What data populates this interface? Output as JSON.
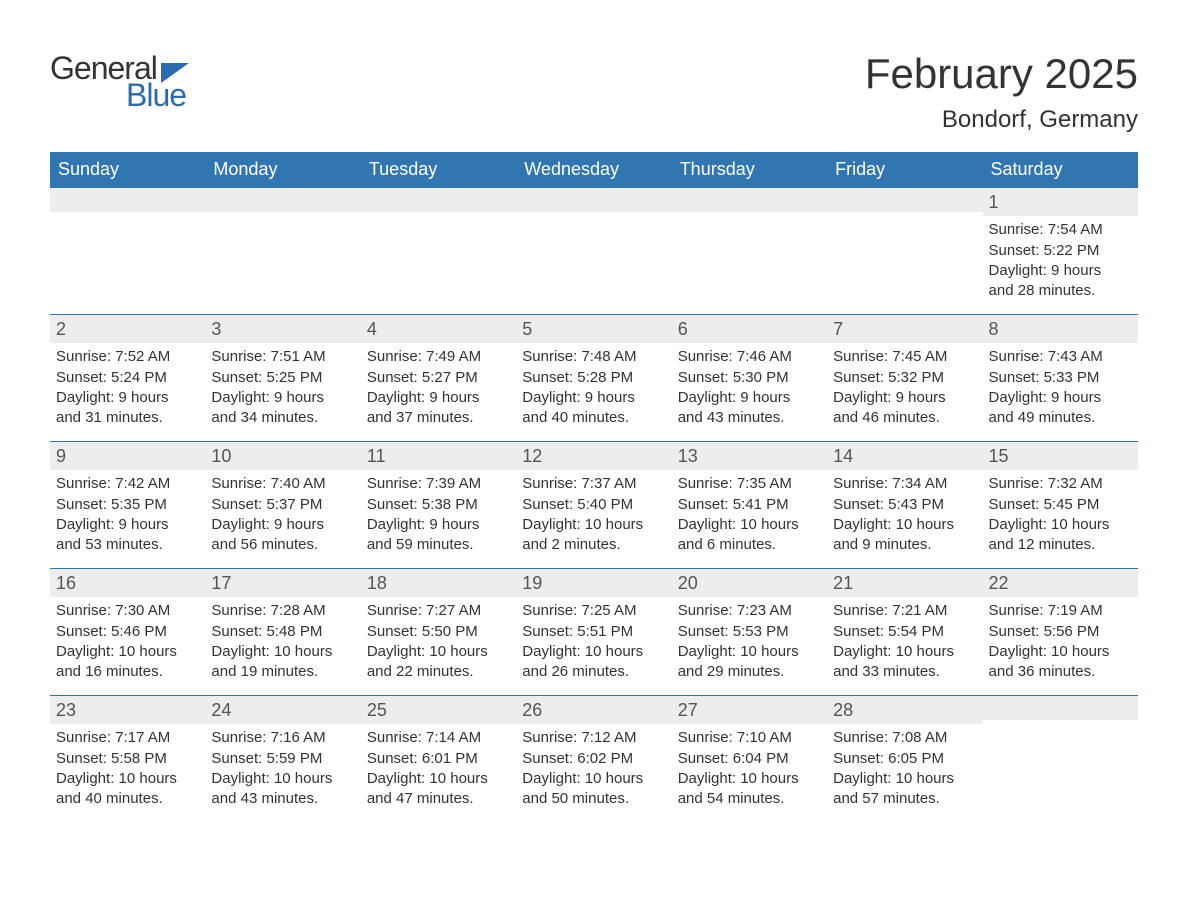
{
  "logo": {
    "text1": "General",
    "text2": "Blue"
  },
  "header": {
    "month": "February 2025",
    "location": "Bondorf, Germany"
  },
  "colors": {
    "header_bg": "#3276b1",
    "header_text": "#ffffff",
    "daynum_bg": "#ededed",
    "border": "#3276b1",
    "logo_blue": "#2b6cb0",
    "text": "#333333",
    "background": "#ffffff"
  },
  "typography": {
    "month_fontsize": 42,
    "location_fontsize": 24,
    "weekday_fontsize": 18,
    "daynum_fontsize": 18,
    "body_fontsize": 15
  },
  "weekdays": [
    "Sunday",
    "Monday",
    "Tuesday",
    "Wednesday",
    "Thursday",
    "Friday",
    "Saturday"
  ],
  "weeks": [
    [
      {
        "day": "",
        "lines": [
          "",
          "",
          "",
          ""
        ]
      },
      {
        "day": "",
        "lines": [
          "",
          "",
          "",
          ""
        ]
      },
      {
        "day": "",
        "lines": [
          "",
          "",
          "",
          ""
        ]
      },
      {
        "day": "",
        "lines": [
          "",
          "",
          "",
          ""
        ]
      },
      {
        "day": "",
        "lines": [
          "",
          "",
          "",
          ""
        ]
      },
      {
        "day": "",
        "lines": [
          "",
          "",
          "",
          ""
        ]
      },
      {
        "day": "1",
        "lines": [
          "Sunrise: 7:54 AM",
          "Sunset: 5:22 PM",
          "Daylight: 9 hours",
          "and 28 minutes."
        ]
      }
    ],
    [
      {
        "day": "2",
        "lines": [
          "Sunrise: 7:52 AM",
          "Sunset: 5:24 PM",
          "Daylight: 9 hours",
          "and 31 minutes."
        ]
      },
      {
        "day": "3",
        "lines": [
          "Sunrise: 7:51 AM",
          "Sunset: 5:25 PM",
          "Daylight: 9 hours",
          "and 34 minutes."
        ]
      },
      {
        "day": "4",
        "lines": [
          "Sunrise: 7:49 AM",
          "Sunset: 5:27 PM",
          "Daylight: 9 hours",
          "and 37 minutes."
        ]
      },
      {
        "day": "5",
        "lines": [
          "Sunrise: 7:48 AM",
          "Sunset: 5:28 PM",
          "Daylight: 9 hours",
          "and 40 minutes."
        ]
      },
      {
        "day": "6",
        "lines": [
          "Sunrise: 7:46 AM",
          "Sunset: 5:30 PM",
          "Daylight: 9 hours",
          "and 43 minutes."
        ]
      },
      {
        "day": "7",
        "lines": [
          "Sunrise: 7:45 AM",
          "Sunset: 5:32 PM",
          "Daylight: 9 hours",
          "and 46 minutes."
        ]
      },
      {
        "day": "8",
        "lines": [
          "Sunrise: 7:43 AM",
          "Sunset: 5:33 PM",
          "Daylight: 9 hours",
          "and 49 minutes."
        ]
      }
    ],
    [
      {
        "day": "9",
        "lines": [
          "Sunrise: 7:42 AM",
          "Sunset: 5:35 PM",
          "Daylight: 9 hours",
          "and 53 minutes."
        ]
      },
      {
        "day": "10",
        "lines": [
          "Sunrise: 7:40 AM",
          "Sunset: 5:37 PM",
          "Daylight: 9 hours",
          "and 56 minutes."
        ]
      },
      {
        "day": "11",
        "lines": [
          "Sunrise: 7:39 AM",
          "Sunset: 5:38 PM",
          "Daylight: 9 hours",
          "and 59 minutes."
        ]
      },
      {
        "day": "12",
        "lines": [
          "Sunrise: 7:37 AM",
          "Sunset: 5:40 PM",
          "Daylight: 10 hours",
          "and 2 minutes."
        ]
      },
      {
        "day": "13",
        "lines": [
          "Sunrise: 7:35 AM",
          "Sunset: 5:41 PM",
          "Daylight: 10 hours",
          "and 6 minutes."
        ]
      },
      {
        "day": "14",
        "lines": [
          "Sunrise: 7:34 AM",
          "Sunset: 5:43 PM",
          "Daylight: 10 hours",
          "and 9 minutes."
        ]
      },
      {
        "day": "15",
        "lines": [
          "Sunrise: 7:32 AM",
          "Sunset: 5:45 PM",
          "Daylight: 10 hours",
          "and 12 minutes."
        ]
      }
    ],
    [
      {
        "day": "16",
        "lines": [
          "Sunrise: 7:30 AM",
          "Sunset: 5:46 PM",
          "Daylight: 10 hours",
          "and 16 minutes."
        ]
      },
      {
        "day": "17",
        "lines": [
          "Sunrise: 7:28 AM",
          "Sunset: 5:48 PM",
          "Daylight: 10 hours",
          "and 19 minutes."
        ]
      },
      {
        "day": "18",
        "lines": [
          "Sunrise: 7:27 AM",
          "Sunset: 5:50 PM",
          "Daylight: 10 hours",
          "and 22 minutes."
        ]
      },
      {
        "day": "19",
        "lines": [
          "Sunrise: 7:25 AM",
          "Sunset: 5:51 PM",
          "Daylight: 10 hours",
          "and 26 minutes."
        ]
      },
      {
        "day": "20",
        "lines": [
          "Sunrise: 7:23 AM",
          "Sunset: 5:53 PM",
          "Daylight: 10 hours",
          "and 29 minutes."
        ]
      },
      {
        "day": "21",
        "lines": [
          "Sunrise: 7:21 AM",
          "Sunset: 5:54 PM",
          "Daylight: 10 hours",
          "and 33 minutes."
        ]
      },
      {
        "day": "22",
        "lines": [
          "Sunrise: 7:19 AM",
          "Sunset: 5:56 PM",
          "Daylight: 10 hours",
          "and 36 minutes."
        ]
      }
    ],
    [
      {
        "day": "23",
        "lines": [
          "Sunrise: 7:17 AM",
          "Sunset: 5:58 PM",
          "Daylight: 10 hours",
          "and 40 minutes."
        ]
      },
      {
        "day": "24",
        "lines": [
          "Sunrise: 7:16 AM",
          "Sunset: 5:59 PM",
          "Daylight: 10 hours",
          "and 43 minutes."
        ]
      },
      {
        "day": "25",
        "lines": [
          "Sunrise: 7:14 AM",
          "Sunset: 6:01 PM",
          "Daylight: 10 hours",
          "and 47 minutes."
        ]
      },
      {
        "day": "26",
        "lines": [
          "Sunrise: 7:12 AM",
          "Sunset: 6:02 PM",
          "Daylight: 10 hours",
          "and 50 minutes."
        ]
      },
      {
        "day": "27",
        "lines": [
          "Sunrise: 7:10 AM",
          "Sunset: 6:04 PM",
          "Daylight: 10 hours",
          "and 54 minutes."
        ]
      },
      {
        "day": "28",
        "lines": [
          "Sunrise: 7:08 AM",
          "Sunset: 6:05 PM",
          "Daylight: 10 hours",
          "and 57 minutes."
        ]
      },
      {
        "day": "",
        "lines": [
          "",
          "",
          "",
          ""
        ]
      }
    ]
  ]
}
